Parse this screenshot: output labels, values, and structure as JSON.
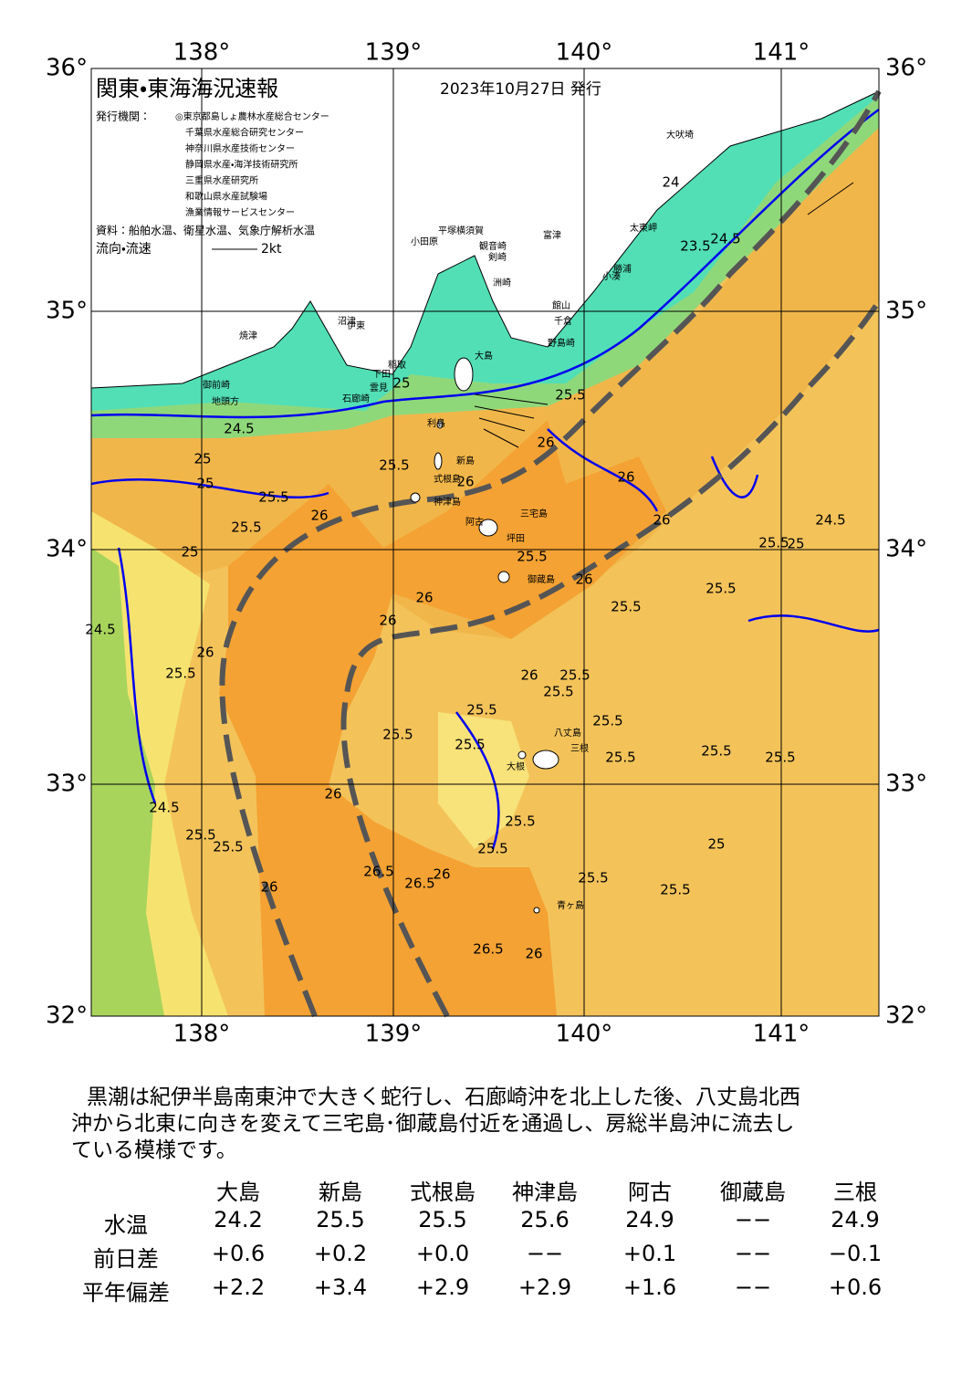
{
  "header": {
    "title": "関東・東海海況速報",
    "date": "2023年10月27日 発行",
    "issuer_label": "発行機関：",
    "issuers": [
      "◎東京都島しょ農林水産総合センター",
      "千葉県水産総合研究センター",
      "神奈川県水産技術センター",
      "静岡県水産・海洋技術研究所",
      "三重県水産研究所",
      "和歌山県水産試験場",
      "漁業情報サービスセンター"
    ],
    "source": "資料：船舶水温、衛星水温、気象庁解析水温",
    "legend_label": "流向・流速",
    "legend_scale": "2kt"
  },
  "map": {
    "lon_labels": [
      "138°",
      "139°",
      "140°",
      "141°"
    ],
    "lat_labels": [
      "36°",
      "35°",
      "34°",
      "33°",
      "32°"
    ],
    "places": [
      "大島",
      "利島",
      "新島",
      "式根島",
      "神津島",
      "三宅島",
      "阿古",
      "坪田",
      "御蔵島",
      "八丈島",
      "三根",
      "大根",
      "青ヶ島",
      "小田原",
      "平塚",
      "横須賀",
      "観音崎",
      "剣崎",
      "富津",
      "洲崎",
      "館山",
      "千倉",
      "野島崎",
      "小湊",
      "勝浦",
      "太東岬",
      "大吠埼",
      "伊東",
      "稲取",
      "下田",
      "雲見",
      "石廊崎",
      "沼津",
      "焼津",
      "御前崎",
      "地頭方"
    ],
    "contours": [
      "24.5",
      "25",
      "25",
      "25.5",
      "25.5",
      "26",
      "25.5",
      "25",
      "24.5",
      "25.5",
      "26",
      "26",
      "26",
      "26",
      "24",
      "25",
      "25.5",
      "26",
      "26",
      "26",
      "25.5",
      "25.5",
      "26",
      "25.5",
      "25.5",
      "25.5",
      "25.5",
      "26",
      "25.5",
      "25.5",
      "25.5",
      "25.5",
      "25.5",
      "26",
      "25.5",
      "26.5",
      "26.5",
      "26",
      "25.5",
      "26.5",
      "26",
      "25.5",
      "25.5",
      "25.5",
      "25",
      "24.5",
      "25.5",
      "26",
      "25.5",
      "24.5",
      "25",
      "23.5",
      "24.5",
      "25.5"
    ]
  },
  "summary": {
    "lines": [
      "黒潮は紀伊半島南東沖で大きく蛇行し、石廊崎沖を北上した後、八丈島北西",
      "沖から北東に向きを変えて三宅島･御蔵島付近を通過し、房総半島沖に流去し",
      "ている模様です。"
    ]
  },
  "table": {
    "columns": [
      "大島",
      "新島",
      "式根島",
      "神津島",
      "阿古",
      "御蔵島",
      "三根"
    ],
    "rows": [
      {
        "label": "水温",
        "values": [
          "24.2",
          "25.5",
          "25.5",
          "25.6",
          "24.9",
          "−−",
          "24.9"
        ]
      },
      {
        "label": "前日差",
        "values": [
          "+0.6",
          "+0.2",
          "+0.0",
          "−−",
          "+0.1",
          "−−",
          "−0.1"
        ]
      },
      {
        "label": "平年偏差",
        "values": [
          "+2.2",
          "+3.4",
          "+2.9",
          "+2.9",
          "+1.6",
          "−−",
          "+0.6"
        ]
      }
    ]
  }
}
